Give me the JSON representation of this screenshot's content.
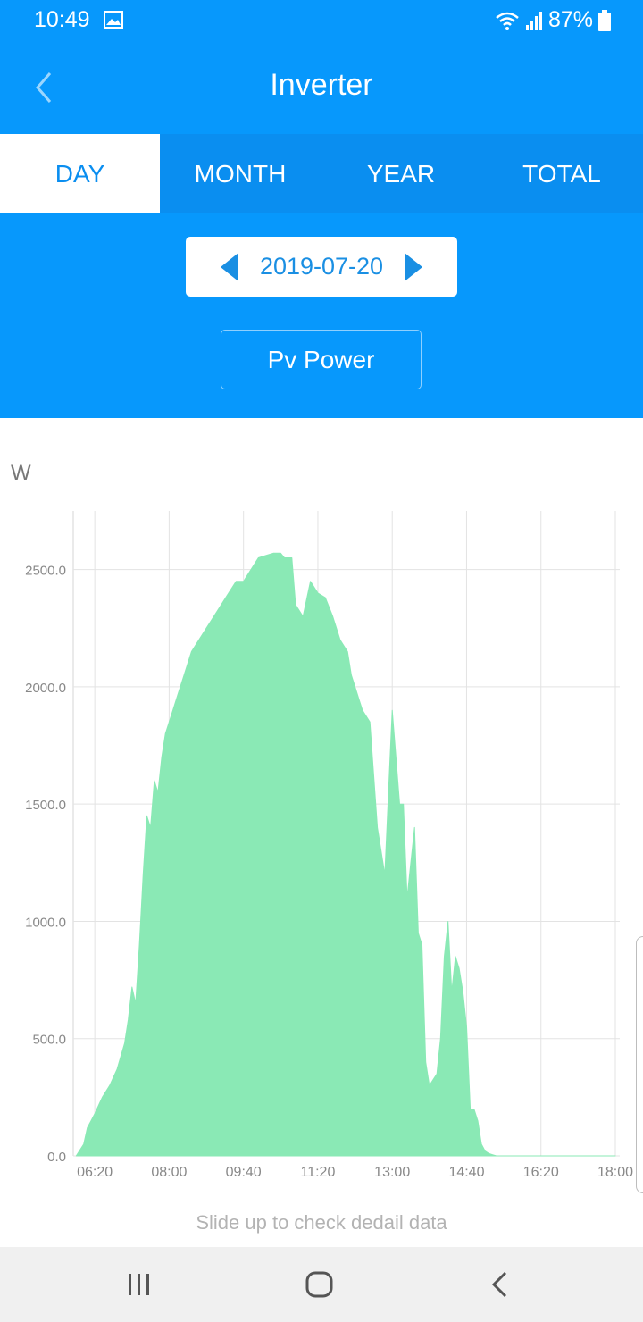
{
  "status": {
    "time": "10:49",
    "battery": "87%",
    "icons": [
      "gallery-icon",
      "wifi-icon",
      "signal-icon",
      "battery-icon"
    ]
  },
  "header": {
    "title": "Inverter",
    "back_icon": "chevron-left-icon"
  },
  "tabs": [
    {
      "label": "DAY",
      "active": true
    },
    {
      "label": "MONTH",
      "active": false
    },
    {
      "label": "YEAR",
      "active": false
    },
    {
      "label": "TOTAL",
      "active": false
    }
  ],
  "date_selector": {
    "value": "2019-07-20",
    "prev_icon": "triangle-left-icon",
    "next_icon": "triangle-right-icon"
  },
  "metric_button": "Pv Power",
  "unit": "W",
  "hint": "Slide up to check dedail data",
  "colors": {
    "primary": "#0798fc",
    "tabs": "#0a8ef0",
    "fill": "#8ae9b5",
    "accent_text": "#1a8fe3"
  },
  "chart_data": {
    "type": "area",
    "ylabel": "W",
    "ylim": [
      0,
      2750
    ],
    "yticks": [
      "0.0",
      "500.0",
      "1000.0",
      "1500.0",
      "2000.0",
      "2500.0"
    ],
    "xticks": [
      "06:20",
      "08:00",
      "09:40",
      "11:20",
      "13:00",
      "14:40",
      "16:20",
      "18:00"
    ],
    "xlim": [
      "05:51",
      "18:06"
    ],
    "grid": true,
    "series": [
      {
        "color": "#8ae9b5",
        "x": [
          "05:55",
          "06:05",
          "06:10",
          "06:15",
          "06:20",
          "06:30",
          "06:40",
          "06:50",
          "07:00",
          "07:05",
          "07:10",
          "07:15",
          "07:20",
          "07:25",
          "07:30",
          "07:35",
          "07:40",
          "07:45",
          "07:50",
          "07:55",
          "08:00",
          "08:05",
          "08:10",
          "08:15",
          "08:20",
          "08:30",
          "08:40",
          "08:50",
          "09:00",
          "09:10",
          "09:20",
          "09:30",
          "09:40",
          "09:50",
          "10:00",
          "10:10",
          "10:20",
          "10:30",
          "10:35",
          "10:45",
          "10:50",
          "11:00",
          "11:10",
          "11:20",
          "11:30",
          "11:40",
          "11:50",
          "12:00",
          "12:05",
          "12:10",
          "12:15",
          "12:20",
          "12:30",
          "12:40",
          "12:50",
          "13:00",
          "13:10",
          "13:15",
          "13:20",
          "13:25",
          "13:30",
          "13:35",
          "13:40",
          "13:45",
          "13:50",
          "14:00",
          "14:05",
          "14:10",
          "14:15",
          "14:20",
          "14:25",
          "14:30",
          "14:35",
          "14:40",
          "14:45",
          "14:50",
          "14:55",
          "15:00",
          "15:05",
          "15:10",
          "15:15",
          "15:20",
          "15:25",
          "15:30",
          "15:35",
          "15:40",
          "15:45",
          "15:50",
          "15:55",
          "16:00",
          "16:05",
          "16:10",
          "16:15",
          "16:20",
          "16:25",
          "16:30",
          "16:35",
          "16:40",
          "16:45",
          "16:50",
          "16:55",
          "17:00",
          "17:05",
          "17:10",
          "17:15",
          "17:20",
          "17:30",
          "17:40",
          "17:50",
          "18:00"
        ],
        "values": [
          0,
          50,
          120,
          150,
          180,
          250,
          300,
          370,
          480,
          580,
          720,
          650,
          900,
          1200,
          1450,
          1400,
          1600,
          1550,
          1700,
          1800,
          1850,
          1900,
          1950,
          2000,
          2050,
          2150,
          2200,
          2250,
          2300,
          2350,
          2400,
          2450,
          2450,
          2500,
          2550,
          2560,
          2570,
          2570,
          2550,
          2550,
          2350,
          2300,
          2450,
          2400,
          2380,
          2300,
          2200,
          2150,
          2050,
          2000,
          1950,
          1900,
          1850,
          1400,
          1200,
          1900,
          1500,
          1500,
          1100,
          1250,
          1400,
          950,
          900,
          400,
          300,
          350,
          500,
          850,
          1000,
          700,
          850,
          800,
          700,
          550,
          200,
          200,
          150,
          50,
          20,
          10,
          5,
          0,
          0,
          0,
          0,
          0,
          0,
          0,
          0,
          0,
          0,
          0,
          0,
          0,
          0,
          0,
          0,
          0,
          0,
          0,
          0,
          0,
          0,
          0,
          0,
          0,
          0,
          0,
          0,
          0
        ]
      }
    ]
  }
}
